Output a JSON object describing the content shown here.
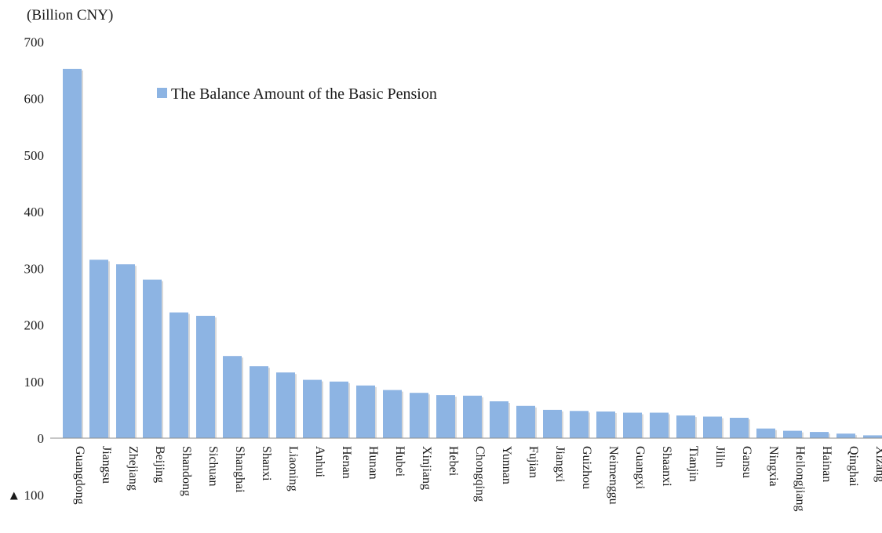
{
  "chart_data": {
    "type": "bar",
    "title": "",
    "ylabel": "(Billion CNY)",
    "xlabel": "",
    "ylim": [
      -100,
      700
    ],
    "yticks": [
      {
        "value": 700,
        "label": "700"
      },
      {
        "value": 600,
        "label": "600"
      },
      {
        "value": 500,
        "label": "500"
      },
      {
        "value": 400,
        "label": "400"
      },
      {
        "value": 300,
        "label": "300"
      },
      {
        "value": 200,
        "label": "200"
      },
      {
        "value": 100,
        "label": "100"
      },
      {
        "value": 0,
        "label": "0"
      },
      {
        "value": -100,
        "label": "▲ 100"
      }
    ],
    "grid": false,
    "legend_position": "top-center",
    "categories": [
      "Guangdong",
      "Jiangsu",
      "Zhejiang",
      "Beijing",
      "Shandong",
      "Sichuan",
      "Shanghai",
      "Shanxi",
      "Liaoning",
      "Anhui",
      "Henan",
      "Hunan",
      "Hubei",
      "Xinjiang",
      "Hebei",
      "Chongqing",
      "Yunnan",
      "Fujian",
      "Jiangxi",
      "Guizhou",
      "Neimenggu",
      "Guangxi",
      "Shaanxi",
      "Tianjin",
      "Jilin",
      "Gansu",
      "Ningxia",
      "Heilongjiang",
      "Hainan",
      "Qinghai",
      "Xizang"
    ],
    "series": [
      {
        "name": "The Balance Amount of the Basic Pension",
        "color": "#8db4e3",
        "values": [
          652,
          315,
          307,
          280,
          222,
          216,
          145,
          127,
          116,
          103,
          100,
          93,
          85,
          80,
          76,
          75,
          65,
          57,
          50,
          48,
          47,
          45,
          45,
          40,
          38,
          36,
          17,
          13,
          11,
          8,
          5
        ]
      }
    ]
  }
}
